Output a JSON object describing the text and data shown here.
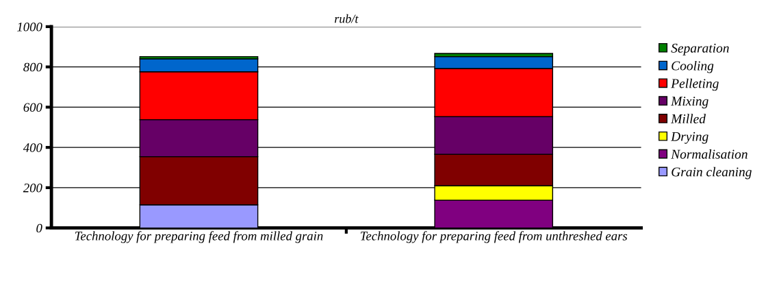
{
  "chart_data": {
    "type": "bar",
    "title": "rub/t",
    "stacked": true,
    "categories": [
      "Technology for preparing feed from milled grain",
      "Technology for preparing feed from unthreshed ears"
    ],
    "series": [
      {
        "name": "Grain cleaning",
        "color": "#9999ff",
        "values": [
          115,
          0
        ]
      },
      {
        "name": "Normalisation",
        "color": "#800080",
        "values": [
          0,
          138
        ]
      },
      {
        "name": "Drying",
        "color": "#ffff00",
        "values": [
          0,
          72
        ]
      },
      {
        "name": "Milled",
        "color": "#800000",
        "values": [
          239,
          156
        ]
      },
      {
        "name": "Mixing",
        "color": "#660066",
        "values": [
          184,
          187
        ]
      },
      {
        "name": "Pelleting",
        "color": "#ff0000",
        "values": [
          238,
          239
        ]
      },
      {
        "name": "Cooling",
        "color": "#0066cc",
        "values": [
          64,
          59
        ]
      },
      {
        "name": "Separation",
        "color": "#008000",
        "values": [
          11,
          16
        ]
      }
    ],
    "ylim": [
      0,
      1000
    ],
    "yticks": [
      0,
      200,
      400,
      600,
      800,
      1000
    ],
    "grid": "y",
    "legend": "right"
  }
}
